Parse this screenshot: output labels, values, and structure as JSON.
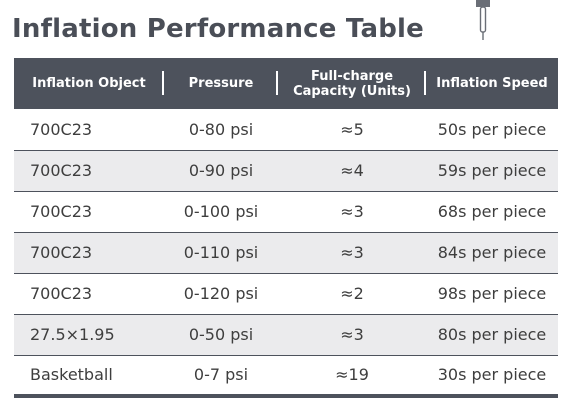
{
  "title": "Inflation Performance Table",
  "decoration": {
    "icon": "pump-needle-icon"
  },
  "table": {
    "headers": [
      "Inflation Object",
      "Pressure",
      "Full-charge\nCapacity (Units)",
      "Inflation Speed"
    ],
    "rows": [
      [
        "700C23",
        "0-80 psi",
        "≈5",
        "50s per piece"
      ],
      [
        "700C23",
        "0-90 psi",
        "≈4",
        "59s per piece"
      ],
      [
        "700C23",
        "0-100 psi",
        "≈3",
        "68s per piece"
      ],
      [
        "700C23",
        "0-110 psi",
        "≈3",
        "84s per piece"
      ],
      [
        "700C23",
        "0-120 psi",
        "≈2",
        "98s per piece"
      ],
      [
        "27.5×1.95",
        "0-50 psi",
        "≈3",
        "80s per piece"
      ],
      [
        "Basketball",
        "0-7 psi",
        "≈19",
        "30s per piece"
      ]
    ]
  },
  "colors": {
    "header_bg": "#4d525c",
    "title": "#4a4e57",
    "alt_row_bg": "#ebebed"
  }
}
